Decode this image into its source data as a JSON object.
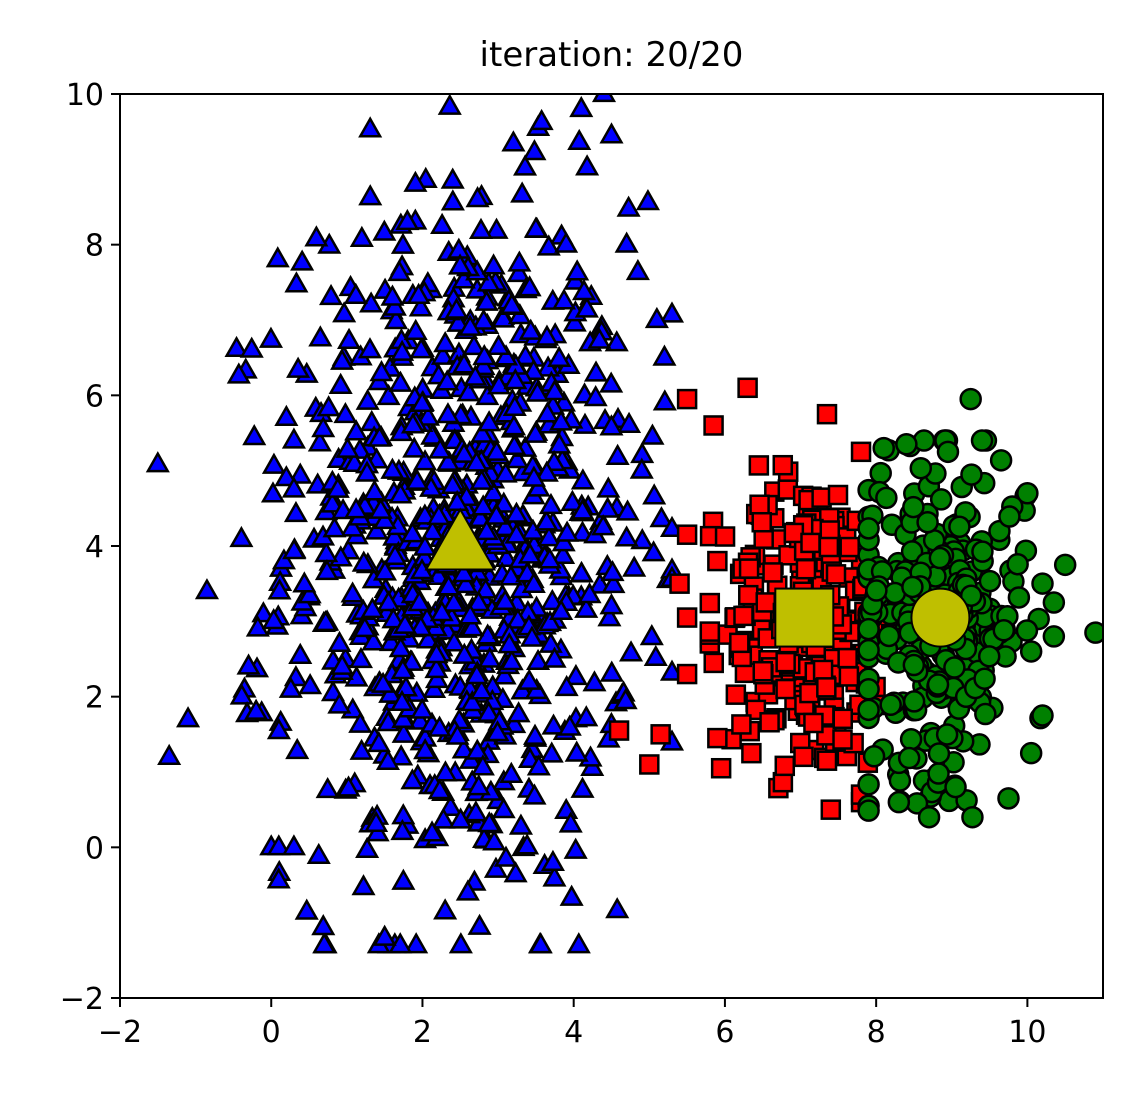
{
  "chart_data": {
    "type": "scatter",
    "title": "iteration: 20/20",
    "xlabel": "",
    "ylabel": "",
    "xlim": [
      -2,
      11
    ],
    "ylim": [
      -2,
      10
    ],
    "xticks": [
      -2,
      0,
      2,
      4,
      6,
      8,
      10
    ],
    "yticks": [
      -2,
      0,
      2,
      4,
      6,
      8,
      10
    ],
    "xtick_labels": [
      "−2",
      "0",
      "2",
      "4",
      "6",
      "8",
      "10"
    ],
    "ytick_labels": [
      "−2",
      "0",
      "2",
      "4",
      "6",
      "8",
      "10"
    ],
    "grid": false,
    "series": [
      {
        "marker": "triangle",
        "color": "#0000ff",
        "cluster": {
          "cx": 2.5,
          "cy": 4.0,
          "sx": 1.15,
          "sy": 2.3,
          "count": 900,
          "xmin": -1.5,
          "xmax": 5.3,
          "ymin": -1.3,
          "ymax": 10.0
        },
        "outliers": [
          [
            4.1,
            9.8
          ],
          [
            4.5,
            9.45
          ],
          [
            2.4,
            8.85
          ],
          [
            -0.85,
            3.4
          ],
          [
            -1.35,
            1.2
          ],
          [
            -1.1,
            1.7
          ],
          [
            1.5,
            -1.2
          ],
          [
            2.3,
            -0.85
          ],
          [
            2.6,
            -0.6
          ],
          [
            4.7,
            4.1
          ],
          [
            4.8,
            3.7
          ],
          [
            4.5,
            3.2
          ],
          [
            4.9,
            5.0
          ],
          [
            5.2,
            6.5
          ],
          [
            5.1,
            7.0
          ],
          [
            4.7,
            8.0
          ],
          [
            1.8,
            8.3
          ],
          [
            0.2,
            5.7
          ],
          [
            0.3,
            5.4
          ],
          [
            0.2,
            4.9
          ],
          [
            0.3,
            4.75
          ],
          [
            -0.3,
            2.4
          ],
          [
            -0.2,
            1.8
          ],
          [
            0.0,
            0.0
          ],
          [
            0.1,
            0.0
          ],
          [
            0.3,
            0.0
          ],
          [
            3.5,
            8.2
          ],
          [
            3.9,
            8.0
          ]
        ]
      },
      {
        "marker": "square",
        "color": "#ff0000",
        "cluster": {
          "cx": 7.1,
          "cy": 3.0,
          "sx": 0.55,
          "sy": 1.0,
          "count": 260,
          "xmin": 5.8,
          "xmax": 8.2,
          "ymin": 0.5,
          "ymax": 5.2
        },
        "outliers": [
          [
            5.5,
            5.95
          ],
          [
            6.3,
            6.1
          ],
          [
            5.85,
            5.6
          ],
          [
            7.35,
            5.75
          ],
          [
            4.6,
            1.55
          ],
          [
            5.15,
            1.5
          ],
          [
            5.0,
            1.1
          ],
          [
            5.5,
            4.15
          ],
          [
            5.4,
            3.5
          ],
          [
            5.5,
            3.05
          ],
          [
            5.5,
            2.3
          ],
          [
            5.9,
            1.45
          ],
          [
            5.95,
            1.05
          ],
          [
            6.35,
            1.25
          ],
          [
            7.4,
            0.5
          ],
          [
            7.35,
            1.15
          ],
          [
            7.8,
            0.6
          ],
          [
            7.8,
            0.7
          ],
          [
            7.8,
            5.25
          ],
          [
            5.9,
            3.8
          ]
        ]
      },
      {
        "marker": "circle",
        "color": "#008000",
        "cluster": {
          "cx": 8.8,
          "cy": 3.05,
          "sx": 0.6,
          "sy": 1.05,
          "count": 300,
          "xmin": 7.9,
          "xmax": 10.2,
          "ymin": 0.4,
          "ymax": 5.4
        },
        "outliers": [
          [
            9.25,
            5.95
          ],
          [
            9.4,
            5.4
          ],
          [
            10.0,
            4.7
          ],
          [
            10.5,
            3.75
          ],
          [
            10.9,
            2.85
          ],
          [
            10.35,
            2.8
          ],
          [
            10.35,
            3.25
          ],
          [
            10.2,
            1.75
          ],
          [
            10.05,
            1.25
          ],
          [
            9.75,
            0.65
          ],
          [
            8.7,
            0.4
          ],
          [
            8.3,
            0.6
          ],
          [
            9.05,
            0.8
          ],
          [
            10.05,
            2.6
          ],
          [
            8.1,
            5.3
          ],
          [
            8.4,
            5.35
          ],
          [
            8.95,
            5.25
          ]
        ]
      }
    ],
    "centroids": [
      {
        "marker": "triangle",
        "color": "#bfbf00",
        "x": 2.5,
        "y": 4.0
      },
      {
        "marker": "square",
        "color": "#bfbf00",
        "x": 7.05,
        "y": 3.05
      },
      {
        "marker": "circle",
        "color": "#bfbf00",
        "x": 8.85,
        "y": 3.05
      }
    ]
  }
}
